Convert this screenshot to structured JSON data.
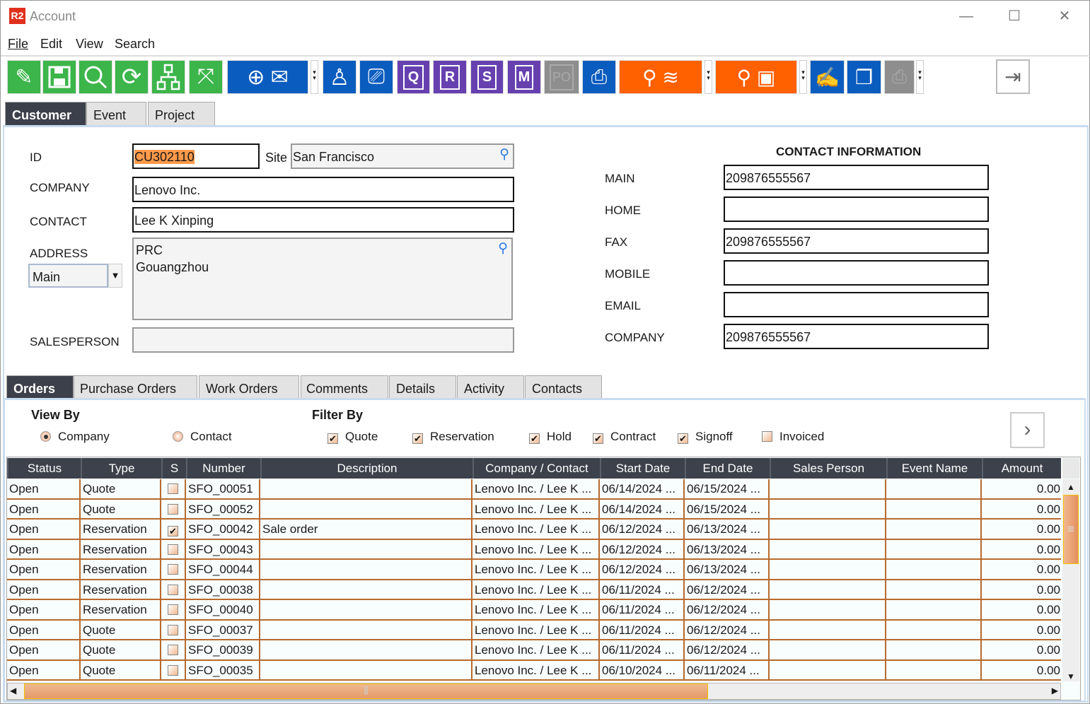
{
  "window": {
    "logo": "R2",
    "title": "Account",
    "minimize": "—",
    "maximize": "☐",
    "close": "✕"
  },
  "menu": [
    "File",
    "Edit",
    "View",
    "Search"
  ],
  "toolbar": {
    "buttons": [
      {
        "icon": "broom-icon",
        "color": "#3cb54a"
      },
      {
        "icon": "save-icon",
        "color": "#3cb54a"
      },
      {
        "icon": "search-icon",
        "color": "#3cb54a"
      },
      {
        "icon": "refresh-icon",
        "color": "#3cb54a"
      },
      {
        "icon": "hierarchy-icon",
        "color": "#3cb54a"
      },
      {
        "icon": "expand-icon",
        "color": "#3cb54a"
      },
      {
        "icon": "new-email-icon",
        "color": "#0b5cbf"
      },
      {
        "icon": "person-icon",
        "color": "#0b5cbf"
      },
      {
        "icon": "ticket-icon",
        "color": "#0b5cbf"
      },
      {
        "icon": "quote-doc-icon",
        "label": "Q",
        "color": "#6740b0"
      },
      {
        "icon": "reservation-doc-icon",
        "label": "R",
        "color": "#6740b0"
      },
      {
        "icon": "signoff-doc-icon",
        "label": "S",
        "color": "#6740b0"
      },
      {
        "icon": "m-doc-icon",
        "label": "M",
        "color": "#6740b0"
      },
      {
        "icon": "po-doc-icon",
        "label": "PO",
        "color": "#8e8e8e"
      },
      {
        "icon": "cash-register-icon",
        "color": "#0b5cbf"
      },
      {
        "icon": "search-stack-icon",
        "color": "#ff6000"
      },
      {
        "icon": "search-box-icon",
        "color": "#ff6000"
      },
      {
        "icon": "sign-contract-icon",
        "color": "#0b5cbf"
      },
      {
        "icon": "copy-docs-icon",
        "color": "#0b5cbf"
      },
      {
        "icon": "printer-icon",
        "color": "#8e8e8e"
      },
      {
        "icon": "exit-icon",
        "color": "#ffffff"
      }
    ]
  },
  "top_tabs": [
    "Customer",
    "Event",
    "Project"
  ],
  "form": {
    "id_label": "ID",
    "id_value": "CU302110",
    "site_label": "Site",
    "site_value": "San Francisco",
    "company_label": "COMPANY",
    "company_value": "Lenovo Inc.",
    "contact_label": "CONTACT",
    "contact_value": "Lee K Xinping",
    "address_label": "ADDRESS",
    "address_type": "Main",
    "address_line1": "PRC",
    "address_line2": "Gouangzhou",
    "salesperson_label": "SALESPERSON",
    "salesperson_value": ""
  },
  "contact_info": {
    "heading": "CONTACT INFORMATION",
    "fields": [
      {
        "label": "MAIN",
        "value": "209876555567"
      },
      {
        "label": "HOME",
        "value": ""
      },
      {
        "label": "FAX",
        "value": "209876555567"
      },
      {
        "label": "MOBILE",
        "value": ""
      },
      {
        "label": "EMAIL",
        "value": ""
      },
      {
        "label": "COMPANY",
        "value": "209876555567"
      }
    ]
  },
  "sub_tabs": [
    "Orders",
    "Purchase Orders",
    "Work Orders",
    "Comments",
    "Details",
    "Activity",
    "Contacts"
  ],
  "view_by": {
    "label": "View By",
    "options": [
      {
        "label": "Company",
        "selected": true
      },
      {
        "label": "Contact",
        "selected": false
      }
    ]
  },
  "filter_by": {
    "label": "Filter By",
    "options": [
      {
        "label": "Quote",
        "checked": true
      },
      {
        "label": "Reservation",
        "checked": true
      },
      {
        "label": "Hold",
        "checked": true
      },
      {
        "label": "Contract",
        "checked": true
      },
      {
        "label": "Signoff",
        "checked": true
      },
      {
        "label": "Invoiced",
        "checked": false
      }
    ]
  },
  "table": {
    "columns": [
      "Status",
      "Type",
      "S",
      "Number",
      "Description",
      "Company / Contact",
      "Start Date",
      "End Date",
      "Sales Person",
      "Event Name",
      "Amount"
    ],
    "rows": [
      [
        "Open",
        "Quote",
        false,
        "SFO_00051",
        "",
        "Lenovo Inc. / Lee K ...",
        "06/14/2024 ...",
        "06/15/2024 ...",
        "",
        "",
        "0.00"
      ],
      [
        "Open",
        "Quote",
        false,
        "SFO_00052",
        "",
        "Lenovo Inc. / Lee K ...",
        "06/14/2024 ...",
        "06/15/2024 ...",
        "",
        "",
        "0.00"
      ],
      [
        "Open",
        "Reservation",
        true,
        "SFO_00042",
        "Sale order",
        "Lenovo Inc. / Lee K ...",
        "06/12/2024 ...",
        "06/13/2024 ...",
        "",
        "",
        "0.00"
      ],
      [
        "Open",
        "Reservation",
        false,
        "SFO_00043",
        "",
        "Lenovo Inc. / Lee K ...",
        "06/12/2024 ...",
        "06/13/2024 ...",
        "",
        "",
        "0.00"
      ],
      [
        "Open",
        "Reservation",
        false,
        "SFO_00044",
        "",
        "Lenovo Inc. / Lee K ...",
        "06/12/2024 ...",
        "06/13/2024 ...",
        "",
        "",
        "0.00"
      ],
      [
        "Open",
        "Reservation",
        false,
        "SFO_00038",
        "",
        "Lenovo Inc. / Lee K ...",
        "06/11/2024 ...",
        "06/12/2024 ...",
        "",
        "",
        "0.00"
      ],
      [
        "Open",
        "Reservation",
        false,
        "SFO_00040",
        "",
        "Lenovo Inc. / Lee K ...",
        "06/11/2024 ...",
        "06/12/2024 ...",
        "",
        "",
        "0.00"
      ],
      [
        "Open",
        "Quote",
        false,
        "SFO_00037",
        "",
        "Lenovo Inc. / Lee K ...",
        "06/11/2024 ...",
        "06/12/2024 ...",
        "",
        "",
        "0.00"
      ],
      [
        "Open",
        "Quote",
        false,
        "SFO_00039",
        "",
        "Lenovo Inc. / Lee K ...",
        "06/11/2024 ...",
        "06/12/2024 ...",
        "",
        "",
        "0.00"
      ],
      [
        "Open",
        "Quote",
        false,
        "SFO_00035",
        "",
        "Lenovo Inc. / Lee K ...",
        "06/10/2024 ...",
        "06/11/2024 ...",
        "",
        "",
        "0.00"
      ]
    ]
  }
}
